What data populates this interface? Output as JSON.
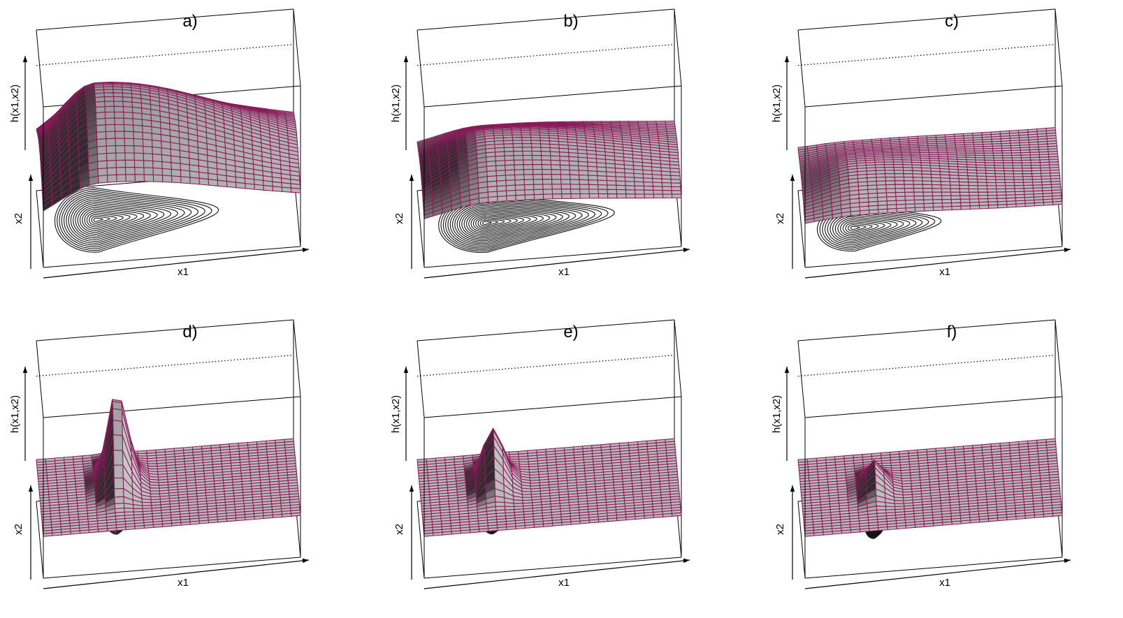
{
  "chart_data": [
    {
      "type": "surface3d",
      "panel_label": "a)",
      "zlabel": "h(x1,x2)",
      "ylabel": "x2",
      "xlabel": "x1",
      "peak": {
        "x1": 0.22,
        "x2": 0.55,
        "relative_height": 1.0,
        "spread_x1": 0.16,
        "spread_x2": 0.42,
        "skew": 2.2
      },
      "contour_levels": 18,
      "surface_color": "#8b1a5a",
      "sheet_color": "#b8b8b8"
    },
    {
      "type": "surface3d",
      "panel_label": "b)",
      "zlabel": "h(x1,x2)",
      "ylabel": "x2",
      "xlabel": "x1",
      "peak": {
        "x1": 0.25,
        "x2": 0.5,
        "relative_height": 0.48,
        "spread_x1": 0.18,
        "spread_x2": 0.38,
        "skew": 2.0
      },
      "contour_levels": 20,
      "surface_color": "#8b1a5a",
      "sheet_color": "#b8b8b8"
    },
    {
      "type": "surface3d",
      "panel_label": "c)",
      "zlabel": "h(x1,x2)",
      "ylabel": "x2",
      "xlabel": "x1",
      "peak": {
        "x1": 0.2,
        "x2": 0.45,
        "relative_height": 0.22,
        "spread_x1": 0.14,
        "spread_x2": 0.3,
        "skew": 1.6
      },
      "contour_levels": 14,
      "surface_color": "#8b1a5a",
      "sheet_color": "#b8b8b8"
    },
    {
      "type": "surface3d",
      "panel_label": "d)",
      "zlabel": "h(x1,x2)",
      "ylabel": "x2",
      "xlabel": "x1",
      "peak": {
        "x1": 0.3,
        "x2": 0.62,
        "relative_height": 1.0,
        "spread_x1": 0.035,
        "spread_x2": 0.14,
        "skew": 0.3
      },
      "contour_levels": 12,
      "surface_color": "#8b1a5a",
      "sheet_color": "#b8b8b8"
    },
    {
      "type": "surface3d",
      "panel_label": "e)",
      "zlabel": "h(x1,x2)",
      "ylabel": "x2",
      "xlabel": "x1",
      "peak": {
        "x1": 0.28,
        "x2": 0.62,
        "relative_height": 0.6,
        "spread_x1": 0.035,
        "spread_x2": 0.13,
        "skew": 0.3
      },
      "contour_levels": 14,
      "surface_color": "#8b1a5a",
      "sheet_color": "#b8b8b8"
    },
    {
      "type": "surface3d",
      "panel_label": "f)",
      "zlabel": "h(x1,x2)",
      "ylabel": "x2",
      "xlabel": "x1",
      "peak": {
        "x1": 0.28,
        "x2": 0.55,
        "relative_height": 0.3,
        "spread_x1": 0.03,
        "spread_x2": 0.12,
        "skew": 0.3
      },
      "contour_levels": 14,
      "surface_color": "#8b1a5a",
      "sheet_color": "#b8b8b8"
    }
  ]
}
